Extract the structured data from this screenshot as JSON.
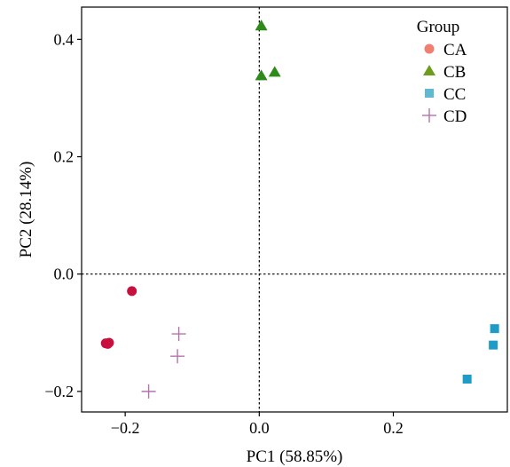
{
  "chart_data": {
    "type": "scatter",
    "title": "",
    "xlabel": "PC1 (58.85%)",
    "ylabel": "PC2 (28.14%)",
    "xlim": [
      -0.265,
      0.37
    ],
    "ylim": [
      -0.235,
      0.455
    ],
    "xticks": [
      -0.2,
      0.0,
      0.2
    ],
    "xtick_labels": [
      "−0.2",
      "0.0",
      "0.2"
    ],
    "yticks": [
      -0.2,
      0.0,
      0.2,
      0.4
    ],
    "ytick_labels": [
      "−0.2",
      "0.0",
      "0.2",
      "0.4"
    ],
    "reference_lines": {
      "x": 0,
      "y": 0,
      "style": "dotted"
    },
    "grid": false,
    "legend": {
      "title": "Group",
      "position": "top-right"
    },
    "series": [
      {
        "name": "CA",
        "marker": "circle",
        "color": "#c8103e",
        "legend_color": "#f07f72",
        "points": [
          [
            -0.229,
            -0.118
          ],
          [
            -0.226,
            -0.119
          ],
          [
            -0.224,
            -0.117
          ],
          [
            -0.19,
            -0.029
          ]
        ]
      },
      {
        "name": "CB",
        "marker": "triangle",
        "color": "#2f8a1c",
        "legend_color": "#6e9c1c",
        "points": [
          [
            0.003,
            0.423
          ],
          [
            0.003,
            0.338
          ],
          [
            0.023,
            0.344
          ]
        ]
      },
      {
        "name": "CC",
        "marker": "square",
        "color": "#1f9bc7",
        "legend_color": "#5fbad1",
        "points": [
          [
            0.351,
            -0.093
          ],
          [
            0.349,
            -0.121
          ],
          [
            0.31,
            -0.179
          ]
        ]
      },
      {
        "name": "CD",
        "marker": "plus",
        "color": "#b373ad",
        "legend_color": "#b373ad",
        "points": [
          [
            -0.12,
            -0.102
          ],
          [
            -0.122,
            -0.14
          ],
          [
            -0.165,
            -0.2
          ]
        ]
      }
    ]
  }
}
